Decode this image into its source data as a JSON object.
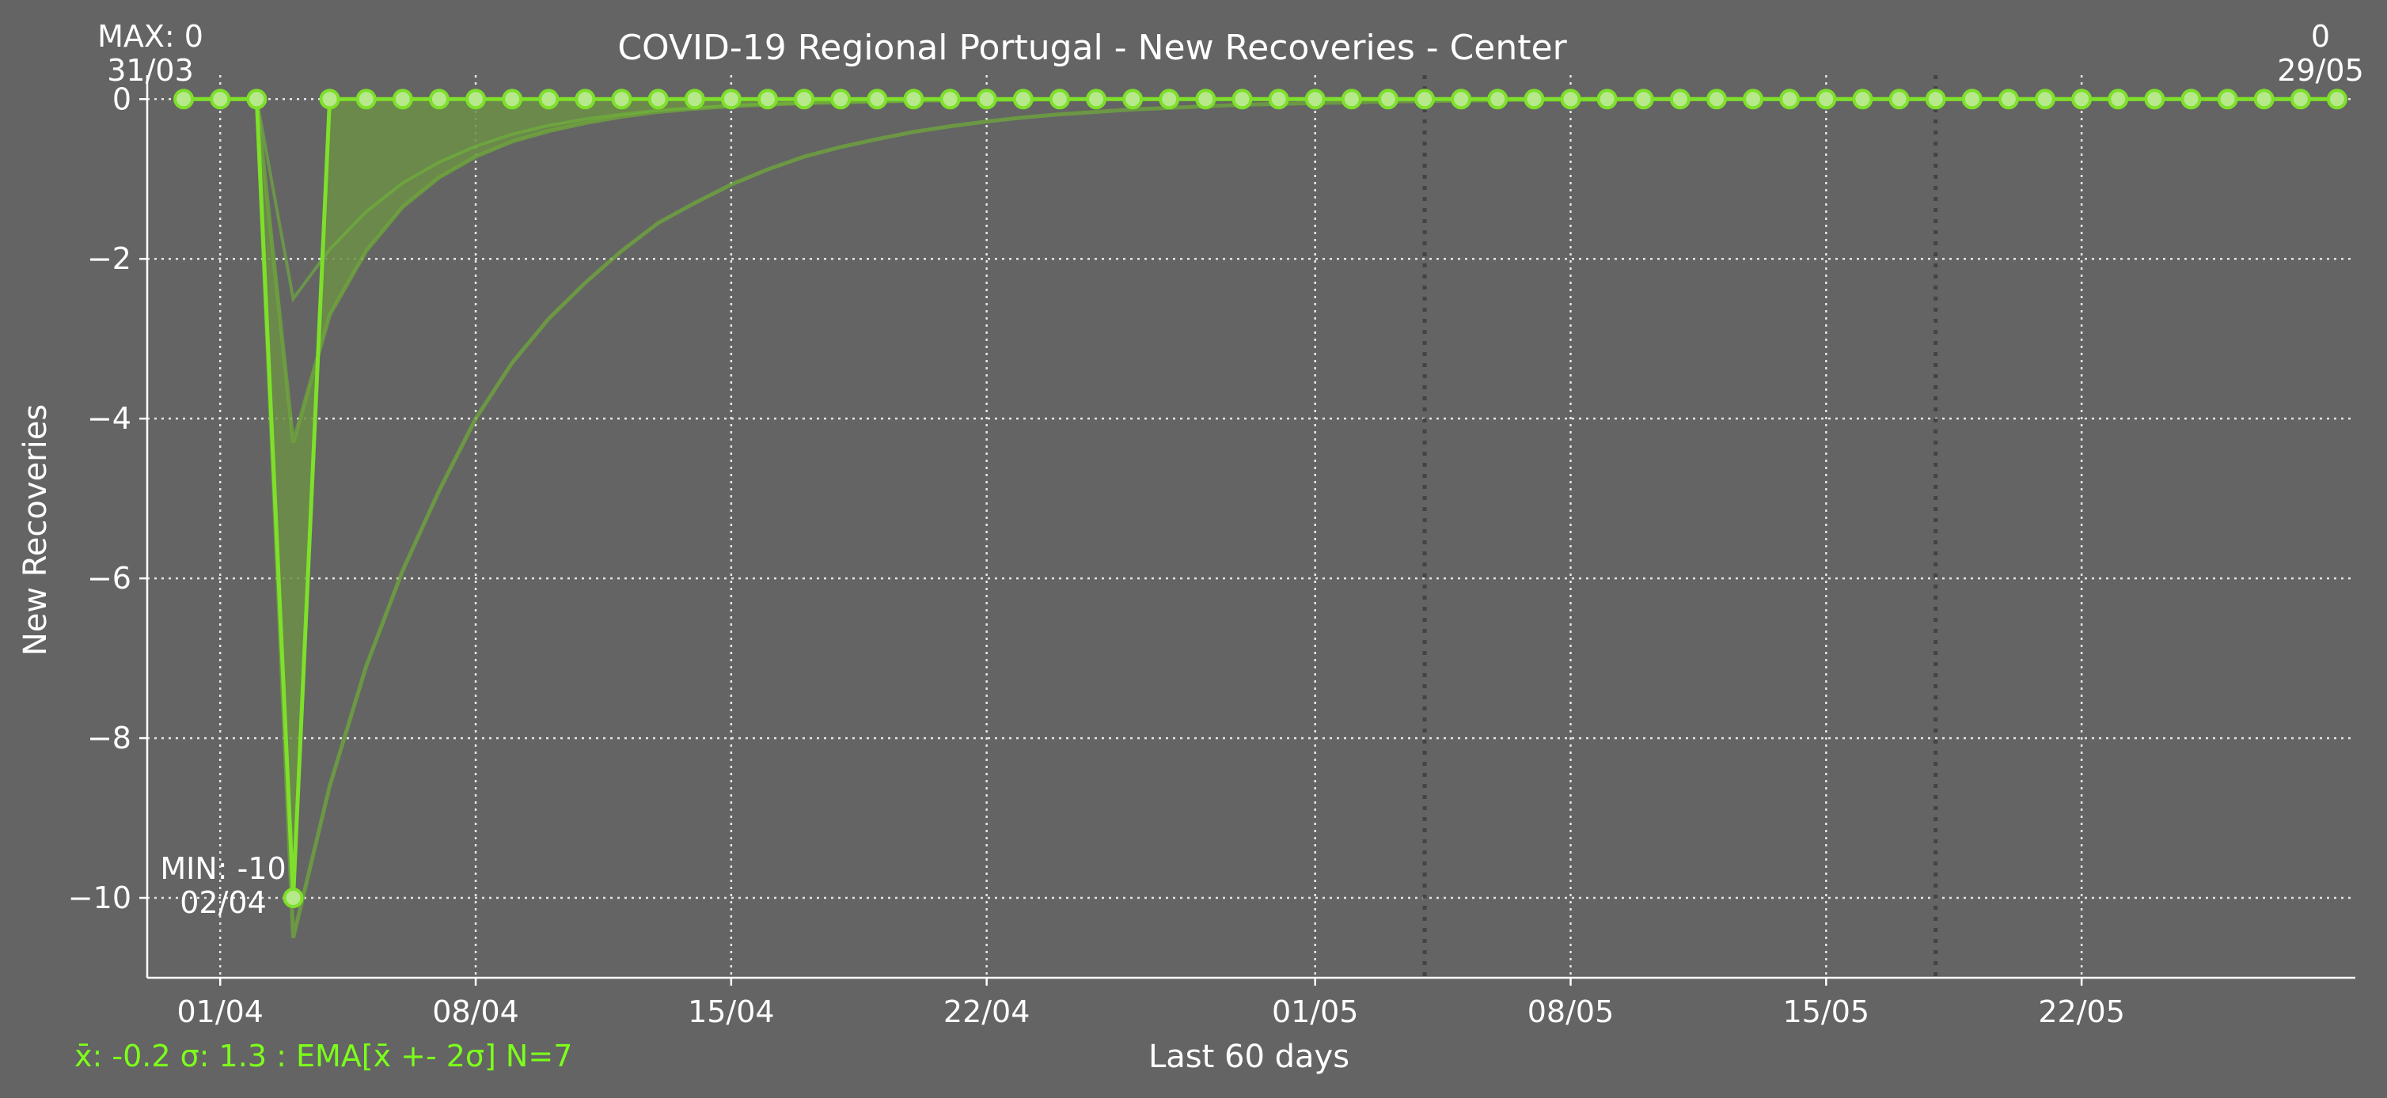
{
  "chart_data": {
    "type": "line",
    "title": "COVID-19 Regional Portugal - New Recoveries - Center",
    "xlabel": "Last 60 days",
    "ylabel": "New Recoveries",
    "ylim": [
      -11,
      0.3
    ],
    "xlim": [
      -1,
      59.5
    ],
    "x_start_date": "30/03",
    "yticks": [
      0,
      -2,
      -4,
      -6,
      -8,
      -10
    ],
    "ytick_labels": [
      "0",
      "−2",
      "−4",
      "−6",
      "−8",
      "−10"
    ],
    "xtick_labels": [
      "01/04",
      "08/04",
      "15/04",
      "22/04",
      "01/05",
      "08/05",
      "15/05",
      "22/05"
    ],
    "xtick_days": [
      1,
      8,
      15,
      22,
      31,
      38,
      45,
      52
    ],
    "vertical_markers_days": [
      34,
      48
    ],
    "grid": true,
    "colors": {
      "series": "#7ee02a",
      "band": "#6b8f45",
      "background": "#636463",
      "stats": "#7cff1a"
    },
    "series": [
      {
        "name": "New Recoveries",
        "values": [
          0,
          0,
          0,
          -10,
          0,
          0,
          0,
          0,
          0,
          0,
          0,
          0,
          0,
          0,
          0,
          0,
          0,
          0,
          0,
          0,
          0,
          0,
          0,
          0,
          0,
          0,
          0,
          0,
          0,
          0,
          0,
          0,
          0,
          0,
          0,
          0,
          0,
          0,
          0,
          0,
          0,
          0,
          0,
          0,
          0,
          0,
          0,
          0,
          0,
          0,
          0,
          0,
          0,
          0,
          0,
          0,
          0,
          0,
          0,
          0
        ]
      }
    ],
    "ema": [
      0,
      0,
      0,
      -2.5,
      -1.88,
      -1.41,
      -1.05,
      -0.79,
      -0.59,
      -0.44,
      -0.33,
      -0.25,
      -0.19,
      -0.14,
      -0.11,
      -0.08,
      -0.06,
      -0.05,
      -0.03,
      -0.03,
      -0.02,
      -0.01,
      -0.01,
      -0.01,
      -0.01,
      0,
      0,
      0,
      0,
      0,
      0,
      0,
      0,
      0,
      0,
      0,
      0,
      0,
      0,
      0,
      0,
      0,
      0,
      0,
      0,
      0,
      0,
      0,
      0,
      0,
      0,
      0,
      0,
      0,
      0,
      0,
      0,
      0,
      0,
      0
    ],
    "ema_lower": [
      0,
      0,
      0,
      -10.5,
      -8.6,
      -7.1,
      -5.9,
      -4.9,
      -4.0,
      -3.3,
      -2.75,
      -2.3,
      -1.9,
      -1.55,
      -1.3,
      -1.07,
      -0.88,
      -0.72,
      -0.6,
      -0.5,
      -0.41,
      -0.34,
      -0.28,
      -0.23,
      -0.19,
      -0.16,
      -0.13,
      -0.11,
      -0.09,
      -0.07,
      -0.06,
      -0.05,
      -0.04,
      -0.03,
      -0.025,
      -0.02,
      -0.015,
      -0.01,
      -0.01,
      -0.01,
      0,
      0,
      0,
      0,
      0,
      0,
      0,
      0,
      0,
      0,
      0,
      0,
      0,
      0,
      0,
      0,
      0,
      0,
      0,
      0
    ],
    "ema_upper": [
      0,
      0,
      0,
      -4.3,
      -2.7,
      -1.9,
      -1.35,
      -0.98,
      -0.72,
      -0.53,
      -0.4,
      -0.3,
      -0.22,
      -0.16,
      -0.12,
      -0.09,
      -0.07,
      -0.05,
      -0.04,
      -0.03,
      -0.02,
      -0.015,
      -0.01,
      -0.01,
      0,
      0,
      0,
      0,
      0,
      0,
      0,
      0,
      0,
      0,
      0,
      0,
      0,
      0,
      0,
      0,
      0,
      0,
      0,
      0,
      0,
      0,
      0,
      0,
      0,
      0,
      0,
      0,
      0,
      0,
      0,
      0,
      0,
      0,
      0,
      0
    ],
    "annotations": {
      "max_label": "MAX: 0",
      "max_date": "31/03",
      "min_label": "MIN: -10",
      "min_date": "02/04",
      "last_value": "0",
      "last_date": "29/05"
    },
    "stats_text": "x̄: -0.2 σ: 1.3 : EMA[x̄ +- 2σ] N=7"
  }
}
